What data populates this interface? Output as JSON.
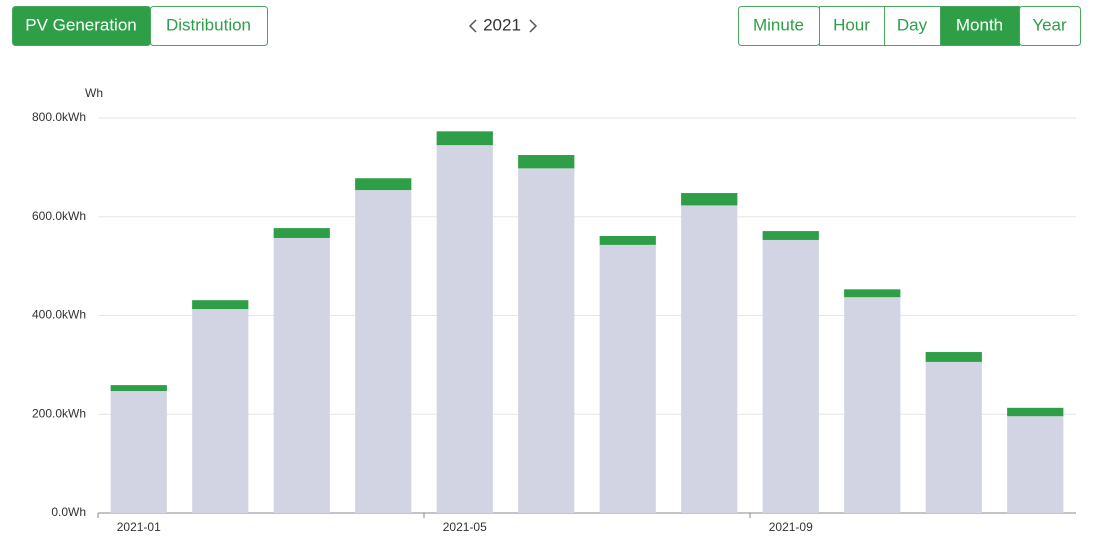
{
  "ui": {
    "views": [
      "PV Generation",
      "Distribution"
    ],
    "selected_view": 0,
    "year": "2021",
    "periods": [
      "Minute",
      "Hour",
      "Day",
      "Month",
      "Year"
    ],
    "selected_period": 3
  },
  "chart_data": {
    "type": "stacked_bar",
    "y_label": "Wh",
    "categories": [
      "2021-01",
      null,
      null,
      null,
      "2021-05",
      null,
      null,
      null,
      "2021-09",
      null,
      null,
      null
    ],
    "series": [
      {
        "color": "#d3d4e3",
        "values": [
          247,
          413,
          557,
          654,
          745,
          698,
          543,
          623,
          553,
          437,
          306,
          196
        ]
      },
      {
        "color": "#2e9e47",
        "values": [
          12,
          18,
          20,
          24,
          28,
          27,
          18,
          25,
          18,
          16,
          20,
          17
        ]
      }
    ],
    "ylim": [
      0,
      800
    ],
    "yticks": [
      {
        "value": 0,
        "label": "0.0Wh"
      },
      {
        "value": 200,
        "label": "200.0kWh"
      },
      {
        "value": 400,
        "label": "400.0kWh"
      },
      {
        "value": 600,
        "label": "600.0kWh"
      },
      {
        "value": 800,
        "label": "800.0kWh"
      }
    ],
    "grid": true
  }
}
